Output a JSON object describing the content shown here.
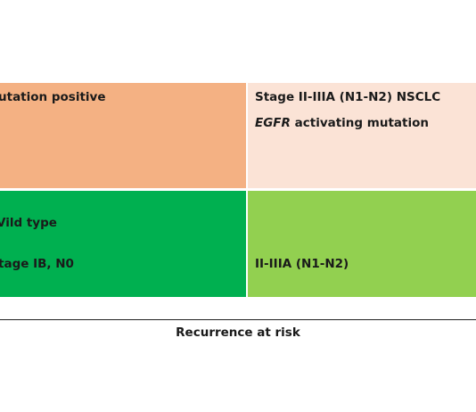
{
  "colors": {
    "top_left": "#f4b183",
    "top_right": "#fbe3d6",
    "bottom_left": "#00b050",
    "bottom_right": "#92d050"
  },
  "quadrants": {
    "top_left": {
      "line1": "utation positive"
    },
    "top_right": {
      "line1": "Stage II-IIIA (N1-N2) NSCLC",
      "line2_italic": "EGFR",
      "line2_rest": " activating mutation"
    },
    "bottom_left": {
      "line1": "Vild type",
      "line2": "tage IB, N0"
    },
    "bottom_right": {
      "line1": "II-IIIA (N1-N2)"
    }
  },
  "axis": {
    "label": "Recurrence at risk"
  }
}
